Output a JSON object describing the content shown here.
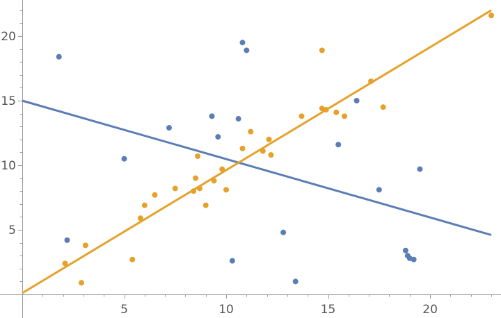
{
  "chart_data": {
    "type": "scatter",
    "xlim": [
      0,
      23
    ],
    "ylim": [
      0,
      22
    ],
    "x_ticks": [
      5,
      10,
      15,
      20
    ],
    "x_tick_labels": [
      "5",
      "10",
      "15",
      "20"
    ],
    "y_ticks": [
      5,
      10,
      15,
      20
    ],
    "y_tick_labels": [
      "5",
      "10",
      "15",
      "20"
    ],
    "grid": false,
    "colors": {
      "blue": "#5b7db5",
      "orange": "#e5a12b",
      "axis": "#999999"
    },
    "series": [
      {
        "kind": "points",
        "color": "blue",
        "points": [
          [
            1.8,
            18.4
          ],
          [
            2.2,
            4.2
          ],
          [
            5.0,
            10.5
          ],
          [
            7.2,
            12.9
          ],
          [
            9.3,
            13.8
          ],
          [
            9.6,
            12.2
          ],
          [
            10.3,
            2.6
          ],
          [
            10.6,
            13.6
          ],
          [
            10.8,
            19.5
          ],
          [
            11.0,
            18.9
          ],
          [
            12.8,
            4.8
          ],
          [
            13.4,
            1.0
          ],
          [
            15.5,
            11.6
          ],
          [
            16.4,
            15.0
          ],
          [
            17.5,
            8.1
          ],
          [
            18.8,
            3.4
          ],
          [
            18.9,
            3.0
          ],
          [
            19.0,
            2.8
          ],
          [
            19.2,
            2.7
          ],
          [
            19.5,
            9.7
          ]
        ]
      },
      {
        "kind": "points",
        "color": "orange",
        "points": [
          [
            2.1,
            2.4
          ],
          [
            2.9,
            0.9
          ],
          [
            3.1,
            3.8
          ],
          [
            5.4,
            2.7
          ],
          [
            5.8,
            5.9
          ],
          [
            6.0,
            6.9
          ],
          [
            6.5,
            7.7
          ],
          [
            7.5,
            8.2
          ],
          [
            8.4,
            8.0
          ],
          [
            8.5,
            9.0
          ],
          [
            8.6,
            10.7
          ],
          [
            8.7,
            8.2
          ],
          [
            9.0,
            6.9
          ],
          [
            9.4,
            8.8
          ],
          [
            9.8,
            9.7
          ],
          [
            10.0,
            8.1
          ],
          [
            10.8,
            11.3
          ],
          [
            11.2,
            12.6
          ],
          [
            11.8,
            11.1
          ],
          [
            12.1,
            12.0
          ],
          [
            12.2,
            10.8
          ],
          [
            13.7,
            13.8
          ],
          [
            14.7,
            18.9
          ],
          [
            14.7,
            14.4
          ],
          [
            14.9,
            14.3
          ],
          [
            15.4,
            14.1
          ],
          [
            15.8,
            13.8
          ],
          [
            17.1,
            16.5
          ],
          [
            17.7,
            14.5
          ],
          [
            23.0,
            21.6
          ]
        ]
      },
      {
        "kind": "line",
        "color": "blue",
        "points": [
          [
            0,
            15.0
          ],
          [
            23,
            4.6
          ]
        ]
      },
      {
        "kind": "line",
        "color": "orange",
        "points": [
          [
            0,
            0.1
          ],
          [
            23,
            22.0
          ]
        ]
      }
    ]
  }
}
